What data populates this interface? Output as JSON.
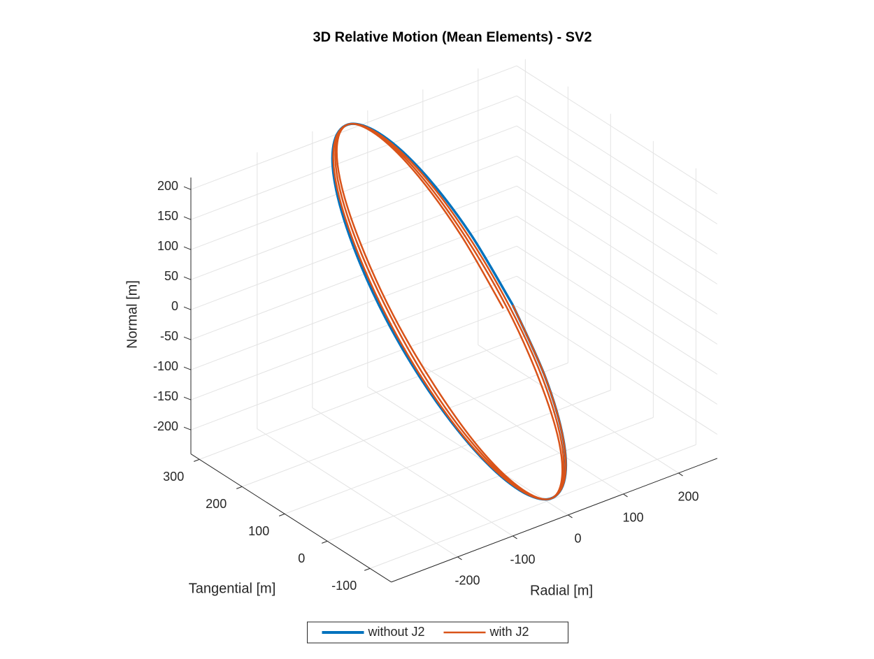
{
  "chart_data": {
    "type": "line3d",
    "title": "3D Relative Motion (Mean Elements) - SV2",
    "xlabel": "Radial [m]",
    "ylabel": "Tangential [m]",
    "zlabel": "Normal [m]",
    "xlim": [
      -320,
      270
    ],
    "ylim": [
      -150,
      320
    ],
    "zlim": [
      -240,
      220
    ],
    "xticks": [
      -200,
      -100,
      0,
      100,
      200
    ],
    "yticks": [
      -100,
      0,
      100,
      200,
      300
    ],
    "zticks": [
      -200,
      -150,
      -100,
      -50,
      0,
      50,
      100,
      150,
      200
    ],
    "grid": true,
    "legend_position": "south",
    "series": [
      {
        "name": "without J2",
        "color": "#0072bd",
        "x": [
          85,
          76,
          51,
          14,
          -30,
          -74,
          -111,
          -136,
          -145,
          -136,
          -111,
          -74,
          -30,
          14,
          51,
          76,
          85
        ],
        "y": [
          90,
          2,
          -73,
          -122,
          -140,
          -122,
          -73,
          2,
          90,
          178,
          253,
          302,
          320,
          302,
          253,
          178,
          90
        ],
        "z": [
          -29,
          -106,
          -168,
          -203,
          -208,
          -181,
          -127,
          -53,
          29,
          107,
          168,
          203,
          208,
          181,
          127,
          53,
          -29
        ]
      },
      {
        "name": "with J2",
        "color": "#d95319",
        "x": [
          85,
          76,
          51,
          14,
          -30,
          -73,
          -110,
          -134,
          -142,
          -133,
          -109,
          -73,
          -30,
          12,
          48,
          71,
          79,
          71,
          47,
          11,
          -30,
          -71,
          -106,
          -129,
          -136,
          -128,
          -105,
          -70,
          -30,
          10,
          44,
          66,
          74,
          65,
          43,
          9,
          -30,
          -69,
          -102,
          -123,
          -131,
          -123,
          -101,
          -68,
          -30,
          8,
          40,
          61,
          68
        ],
        "y": [
          90,
          2,
          -73,
          -122,
          -140,
          -122,
          -73,
          2,
          90,
          178,
          253,
          302,
          320,
          302,
          253,
          178,
          90,
          2,
          -73,
          -122,
          -140,
          -122,
          -73,
          2,
          90,
          178,
          253,
          302,
          320,
          302,
          253,
          178,
          90,
          2,
          -73,
          -122,
          -140,
          -122,
          -73,
          2,
          90,
          178,
          253,
          302,
          320,
          302,
          253,
          178,
          90
        ],
        "z": [
          -29,
          -106,
          -168,
          -203,
          -208,
          -181,
          -127,
          -53,
          29,
          107,
          168,
          203,
          208,
          181,
          127,
          53,
          -29,
          -106,
          -168,
          -203,
          -208,
          -181,
          -127,
          -53,
          29,
          107,
          168,
          203,
          208,
          181,
          127,
          53,
          -29,
          -106,
          -168,
          -203,
          -208,
          -181,
          -127,
          -53,
          29,
          107,
          168,
          203,
          208,
          181,
          127,
          53,
          -29
        ]
      }
    ]
  }
}
